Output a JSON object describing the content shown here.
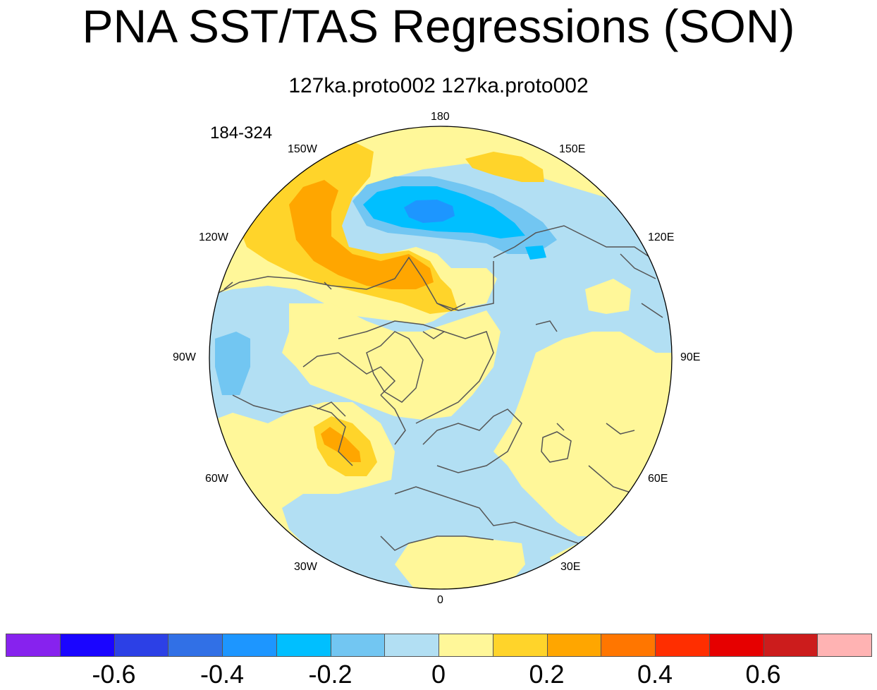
{
  "title": "PNA SST/TAS Regressions (SON)",
  "subtitle": "127ka.proto002  127ka.proto002",
  "years": "184-324",
  "longitude_labels": {
    "deg180": "180",
    "deg150e": "150E",
    "deg120e": "120E",
    "deg90e": "90E",
    "deg60e": "60E",
    "deg30e": "30E",
    "deg0": "0",
    "deg30w": "30W",
    "deg60w": "60W",
    "deg90w": "90W",
    "deg120w": "120W",
    "deg150w": "150W"
  },
  "colorbar": {
    "colors": [
      "#8722ee",
      "#1a05ff",
      "#2c40e6",
      "#3170e6",
      "#1d96ff",
      "#00bfff",
      "#72c6f2",
      "#b2dff3",
      "#fff799",
      "#ffd42a",
      "#ffa600",
      "#ff7600",
      "#ff2e00",
      "#e60000",
      "#cc1c1c",
      "#ffb3b3"
    ],
    "labels": [
      "-0.6",
      "-0.4",
      "-0.2",
      "0",
      "0.2",
      "0.4",
      "0.6"
    ],
    "label_values": [
      -0.6,
      -0.4,
      -0.2,
      0,
      0.2,
      0.4,
      0.6
    ],
    "min": -0.8,
    "max": 0.8,
    "bin_width": 0.1
  },
  "field_colors": {
    "neutral_positive": "#fff799",
    "neutral_negative": "#b2dff3",
    "weak_positive": "#ffd42a",
    "moderate_positive": "#ffa600",
    "weak_negative": "#72c6f2",
    "moderate_negative": "#00bfff",
    "strong_negative": "#1d96ff",
    "coast": "#555555"
  }
}
